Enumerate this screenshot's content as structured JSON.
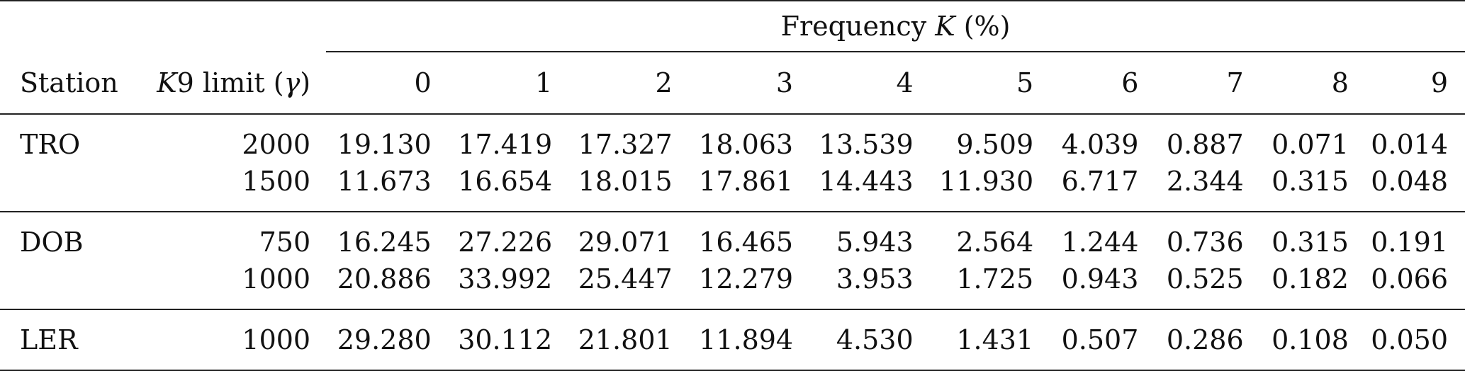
{
  "table": {
    "group_header": "Frequency K (%)",
    "group_header_prefix": "Frequency ",
    "group_header_var": "K",
    "group_header_suffix": " (%)",
    "col_station": "Station",
    "col_limit_var": "K",
    "col_limit_text": "9 limit (",
    "col_limit_gamma": "γ",
    "col_limit_close": ")",
    "k_headers": [
      "0",
      "1",
      "2",
      "3",
      "4",
      "5",
      "6",
      "7",
      "8",
      "9"
    ],
    "groups": [
      {
        "station": "TRO",
        "rows": [
          {
            "limit": "2000",
            "values": [
              "19.130",
              "17.419",
              "17.327",
              "18.063",
              "13.539",
              "9.509",
              "4.039",
              "0.887",
              "0.071",
              "0.014"
            ]
          },
          {
            "limit": "1500",
            "values": [
              "11.673",
              "16.654",
              "18.015",
              "17.861",
              "14.443",
              "11.930",
              "6.717",
              "2.344",
              "0.315",
              "0.048"
            ]
          }
        ]
      },
      {
        "station": "DOB",
        "rows": [
          {
            "limit": "750",
            "values": [
              "16.245",
              "27.226",
              "29.071",
              "16.465",
              "5.943",
              "2.564",
              "1.244",
              "0.736",
              "0.315",
              "0.191"
            ]
          },
          {
            "limit": "1000",
            "values": [
              "20.886",
              "33.992",
              "25.447",
              "12.279",
              "3.953",
              "1.725",
              "0.943",
              "0.525",
              "0.182",
              "0.066"
            ]
          }
        ]
      },
      {
        "station": "LER",
        "rows": [
          {
            "limit": "1000",
            "values": [
              "29.280",
              "30.112",
              "21.801",
              "11.894",
              "4.530",
              "1.431",
              "0.507",
              "0.286",
              "0.108",
              "0.050"
            ]
          }
        ]
      }
    ]
  }
}
